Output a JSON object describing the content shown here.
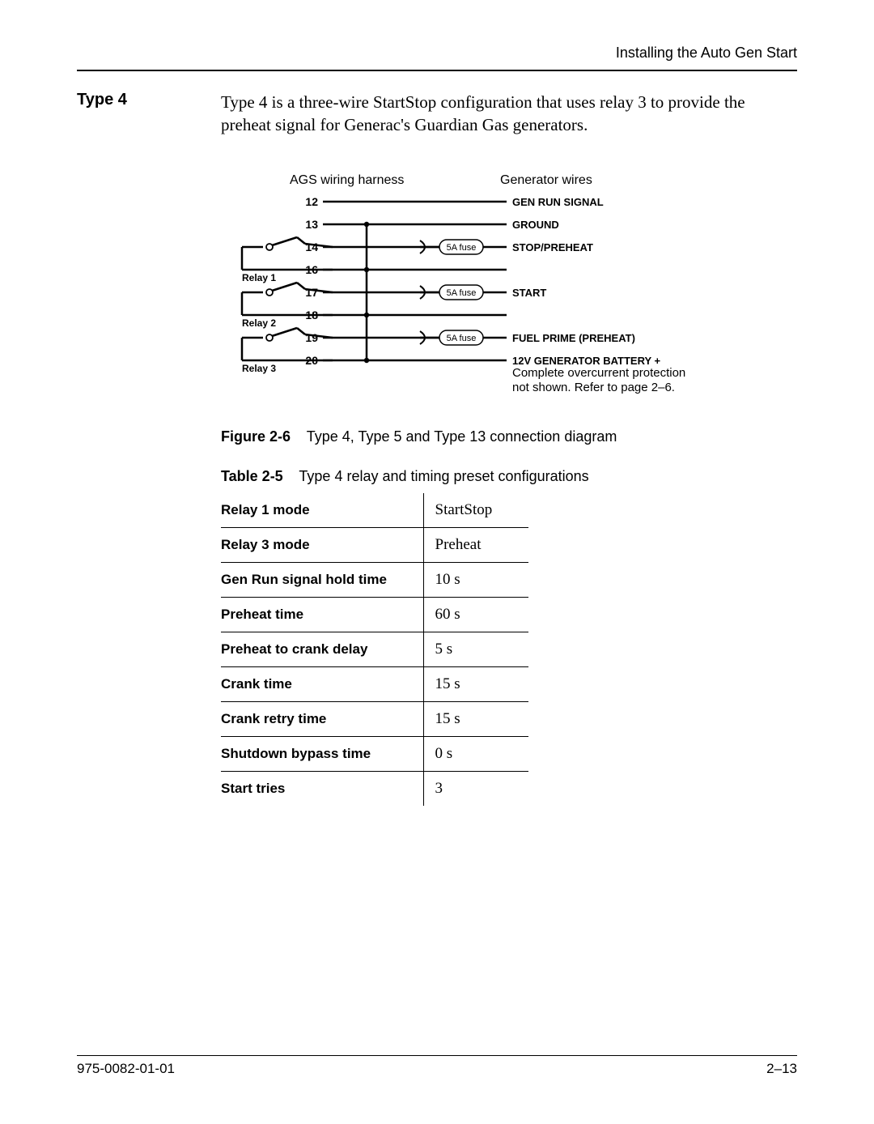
{
  "header": {
    "right": "Installing the Auto Gen Start"
  },
  "section": {
    "heading": "Type 4",
    "body": "Type 4 is a three-wire StartStop configuration that uses relay 3 to provide the preheat signal for Generac's Guardian Gas generators."
  },
  "diagram": {
    "left_title": "AGS wiring harness",
    "right_title": "Generator wires",
    "relays": [
      {
        "label": "Relay 1",
        "pins": [
          "14",
          "16"
        ]
      },
      {
        "label": "Relay 2",
        "pins": [
          "17",
          "18"
        ]
      },
      {
        "label": "Relay 3",
        "pins": [
          "19",
          "20"
        ]
      }
    ],
    "rows": [
      {
        "pin": "12",
        "fuse": null,
        "right": "GEN RUN SIGNAL",
        "bold": true
      },
      {
        "pin": "13",
        "fuse": null,
        "right": "GROUND",
        "bold": true
      },
      {
        "pin": "14",
        "fuse": "5A fuse",
        "right": "STOP/PREHEAT",
        "bold": true
      },
      {
        "pin": "16",
        "fuse": null,
        "right": null,
        "bold": false
      },
      {
        "pin": "17",
        "fuse": "5A fuse",
        "right": "START",
        "bold": true
      },
      {
        "pin": "18",
        "fuse": null,
        "right": null,
        "bold": false
      },
      {
        "pin": "19",
        "fuse": "5A fuse",
        "right": "FUEL PRIME (PREHEAT)",
        "bold": true
      },
      {
        "pin": "20",
        "fuse": null,
        "right": "12V GENERATOR BATTERY +",
        "bold": true
      }
    ],
    "extra_lines": [
      "Complete overcurrent protection",
      "not shown. Refer to page 2–6."
    ],
    "colors": {
      "line": "#000000",
      "bg": "#ffffff"
    }
  },
  "figure": {
    "label": "Figure 2-6",
    "text": "Type 4, Type 5 and Type 13 connection diagram"
  },
  "table_caption": {
    "label": "Table 2-5",
    "text": "Type 4 relay and timing preset configurations"
  },
  "table_rows": [
    {
      "param": "Relay 1 mode",
      "value": "StartStop"
    },
    {
      "param": "Relay 3 mode",
      "value": "Preheat"
    },
    {
      "param": "Gen Run signal hold time",
      "value": "10 s"
    },
    {
      "param": "Preheat time",
      "value": "60 s"
    },
    {
      "param": "Preheat to crank delay",
      "value": "5 s"
    },
    {
      "param": "Crank time",
      "value": "15 s"
    },
    {
      "param": "Crank retry time",
      "value": "15 s"
    },
    {
      "param": "Shutdown bypass time",
      "value": "0 s"
    },
    {
      "param": "Start tries",
      "value": "3"
    }
  ],
  "footer": {
    "left": "975-0082-01-01",
    "right": "2–13"
  }
}
